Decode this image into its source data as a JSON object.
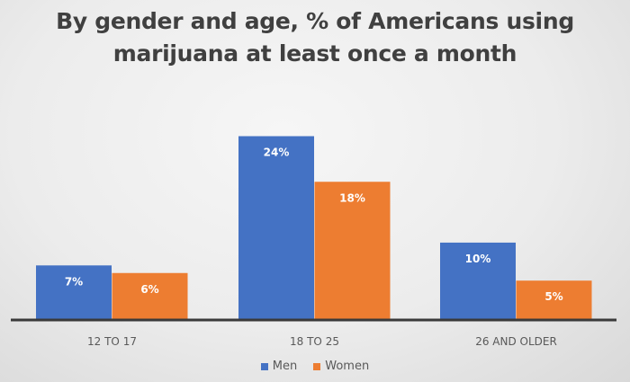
{
  "chart_data": {
    "type": "bar",
    "title_lines": [
      "By gender and age, % of Americans using",
      "marijuana at least once a month"
    ],
    "categories": [
      "12 TO 17",
      "18 TO 25",
      "26 AND OLDER"
    ],
    "series": [
      {
        "name": "Men",
        "color": "#4472c4",
        "values": [
          7,
          24,
          10
        ],
        "labels": [
          "7%",
          "24%",
          "10%"
        ]
      },
      {
        "name": "Women",
        "color": "#ed7d31",
        "values": [
          6,
          18,
          5
        ],
        "labels": [
          "6%",
          "18%",
          "5%"
        ]
      }
    ],
    "xlabel": "",
    "ylabel": "",
    "ylim": [
      0,
      24
    ],
    "grid": false,
    "legend": "bottom"
  }
}
